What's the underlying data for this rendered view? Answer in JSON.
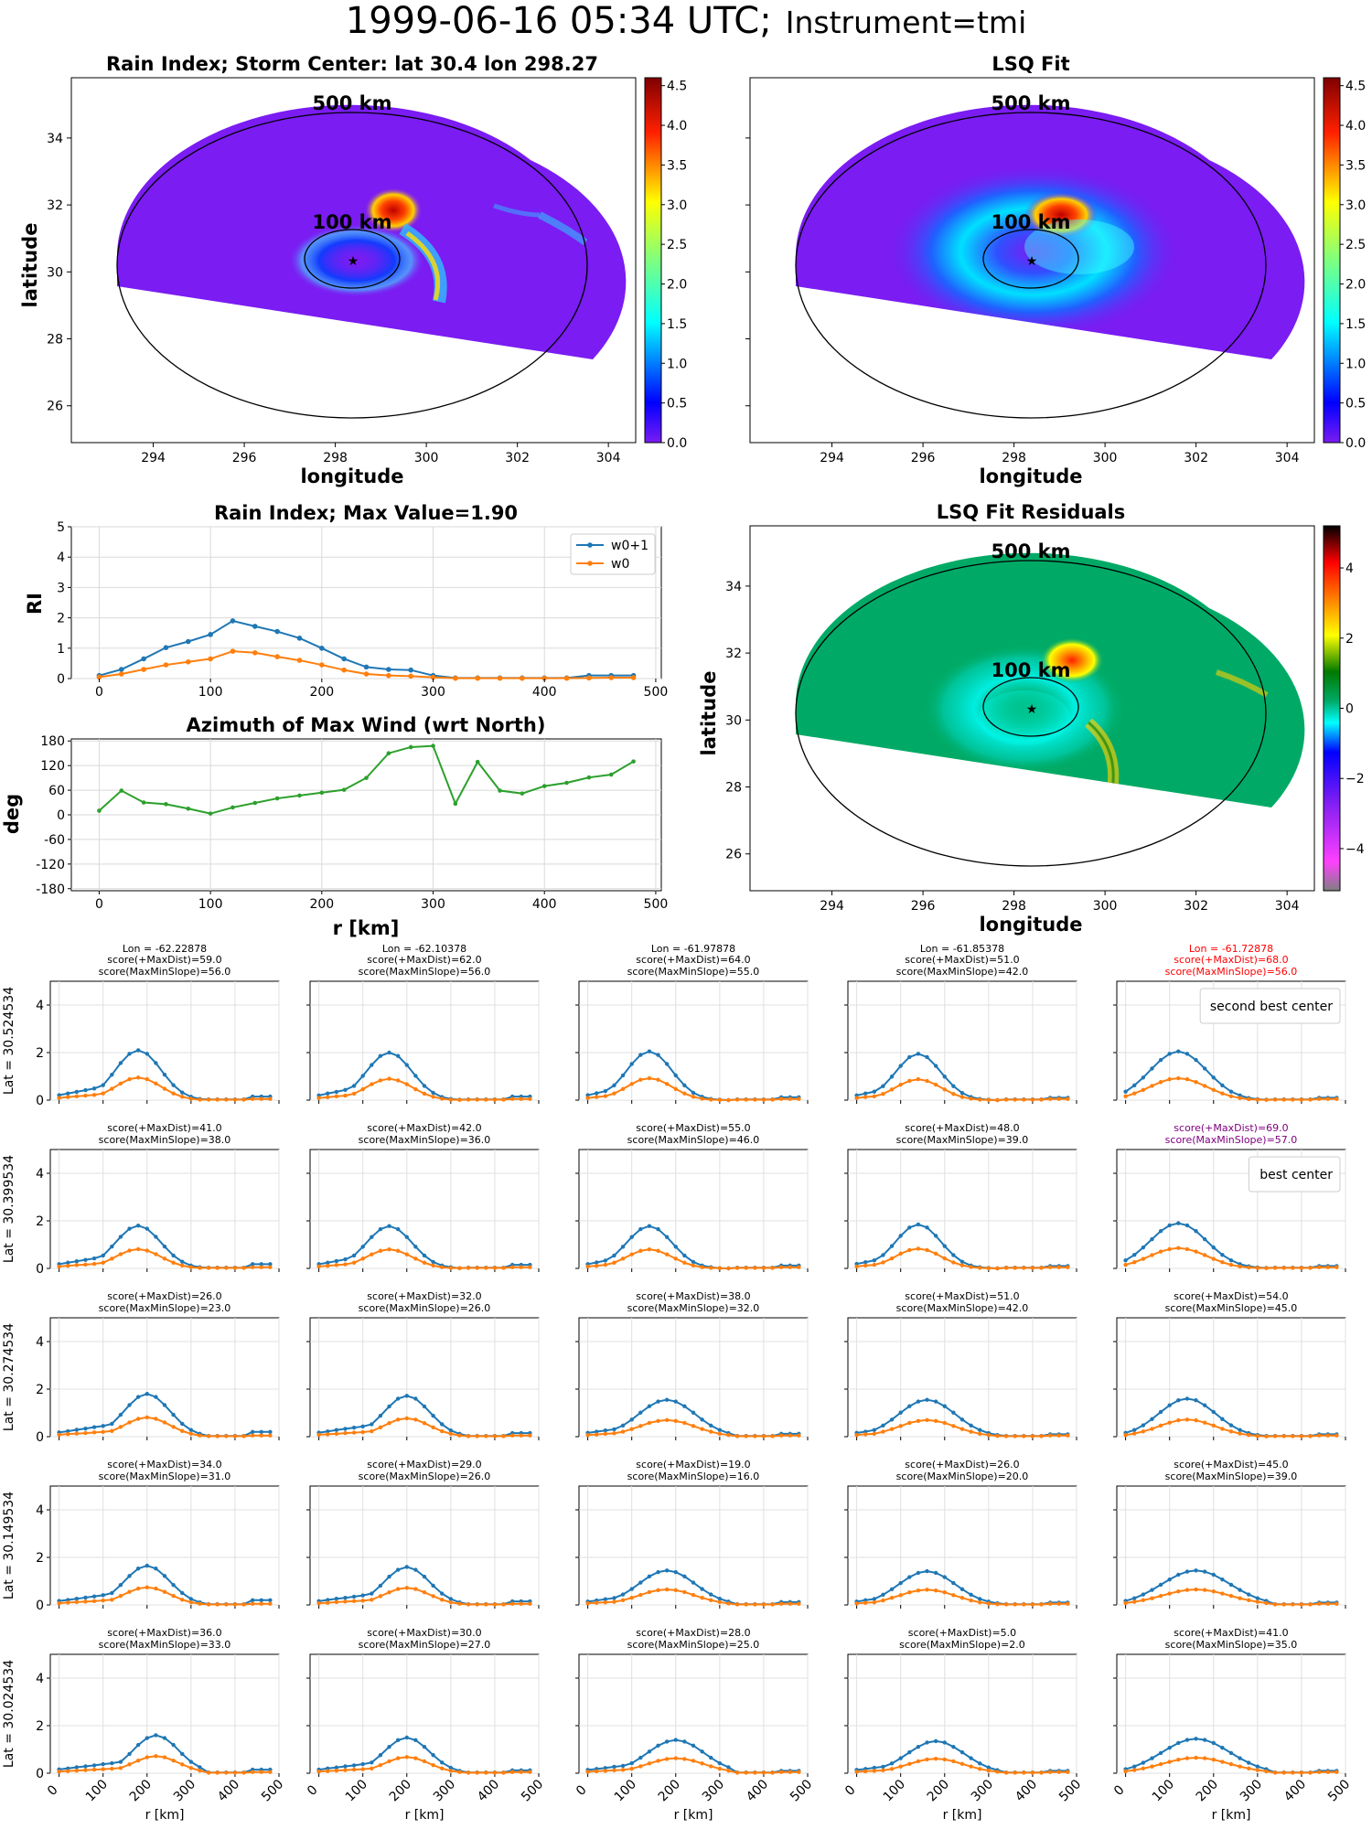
{
  "figure": {
    "suptitle_main": "1999-06-16 05:34 UTC;",
    "suptitle_instrument": "Instrument=tmi"
  },
  "maps": {
    "rain_index_title": "Rain Index; Storm Center: lat 30.4 lon 298.27",
    "lsq_fit_title": "LSQ Fit",
    "residuals_title": "LSQ Fit Residuals",
    "xlabel": "longitude",
    "ylabel": "latitude",
    "ring_outer_label": "500 km",
    "ring_inner_label": "100 km",
    "x_ticks": [
      "294",
      "296",
      "298",
      "300",
      "302",
      "304"
    ],
    "y_ticks": [
      "26",
      "28",
      "30",
      "32",
      "34"
    ],
    "colorbar_ticks": [
      "0.0",
      "0.5",
      "1.0",
      "1.5",
      "2.0",
      "2.5",
      "3.0",
      "3.5",
      "4.0",
      "4.5"
    ],
    "residual_colorbar_ticks": [
      "4",
      "2",
      "0",
      "−2",
      "−4"
    ],
    "colors": {
      "background_rain": "#7a1cf2",
      "residual_background": "#00aa66"
    }
  },
  "chart_data": [
    {
      "type": "line",
      "panel": "rain-index-profile",
      "title": "Rain Index; Max Value=1.90",
      "xlabel": "",
      "ylabel": "RI",
      "xlim": [
        -25,
        505
      ],
      "ylim": [
        0,
        5
      ],
      "x_ticks": [
        0,
        100,
        200,
        300,
        400,
        500
      ],
      "y_ticks": [
        0,
        1,
        2,
        3,
        4,
        5
      ],
      "legend": "top-right",
      "x": [
        0,
        20,
        40,
        60,
        80,
        100,
        120,
        140,
        160,
        180,
        200,
        220,
        240,
        260,
        280,
        300,
        320,
        340,
        360,
        380,
        400,
        420,
        440,
        460,
        480
      ],
      "series": [
        {
          "name": "w0+1",
          "color": "#1f77b4",
          "marker": "star",
          "values": [
            0.1,
            0.3,
            0.65,
            1.02,
            1.22,
            1.45,
            1.9,
            1.72,
            1.55,
            1.33,
            1.0,
            0.65,
            0.38,
            0.3,
            0.28,
            0.1,
            0.02,
            0.02,
            0.02,
            0.02,
            0.02,
            0.02,
            0.1,
            0.1,
            0.1
          ]
        },
        {
          "name": "w0",
          "color": "#ff7f0e",
          "marker": "star",
          "values": [
            0.05,
            0.15,
            0.3,
            0.45,
            0.55,
            0.65,
            0.9,
            0.85,
            0.72,
            0.6,
            0.45,
            0.28,
            0.15,
            0.1,
            0.08,
            0.04,
            0.01,
            0.01,
            0.01,
            0.01,
            0.01,
            0.01,
            0.02,
            0.03,
            0.03
          ]
        }
      ]
    },
    {
      "type": "line",
      "panel": "azimuth-max-wind",
      "title": "Azimuth of Max Wind (wrt North)",
      "xlabel": "r [km]",
      "ylabel": "deg",
      "xlim": [
        -25,
        505
      ],
      "ylim": [
        -185,
        185
      ],
      "x_ticks": [
        0,
        100,
        200,
        300,
        400,
        500
      ],
      "y_ticks": [
        -180,
        -120,
        -60,
        0,
        60,
        120,
        180
      ],
      "x": [
        0,
        20,
        40,
        60,
        80,
        100,
        120,
        140,
        160,
        180,
        200,
        220,
        240,
        260,
        280,
        300,
        320,
        340,
        360,
        380,
        400,
        420,
        440,
        460,
        480
      ],
      "series": [
        {
          "color": "#2ca02c",
          "marker": "dot",
          "values": [
            10,
            59,
            30,
            26,
            15,
            3,
            18,
            29,
            40,
            47,
            54,
            61,
            90,
            150,
            165,
            168,
            27,
            129,
            59,
            52,
            70,
            78,
            91,
            98,
            130
          ]
        }
      ]
    },
    {
      "type": "line",
      "panel": "score-grid",
      "xlabel": "r [km]",
      "x_ticks": [
        0,
        100,
        200,
        300,
        400,
        500
      ],
      "y_ticks": [
        0,
        2,
        4
      ],
      "xlim": [
        -20,
        500
      ],
      "ylim": [
        0,
        5
      ],
      "column_lon_labels": [
        "Lon = -62.22878",
        "Lon = -62.10378",
        "Lon = -61.97878",
        "Lon = -61.85378",
        "Lon = -61.72878"
      ],
      "row_lat_labels": [
        "Lat = 30.524534",
        "Lat = 30.399534",
        "Lat = 30.274534",
        "Lat = 30.149534",
        "Lat = 30.024534"
      ],
      "x": [
        0,
        20,
        40,
        60,
        80,
        100,
        120,
        140,
        160,
        180,
        200,
        220,
        240,
        260,
        280,
        300,
        320,
        340,
        360,
        380,
        400,
        420,
        440,
        460,
        480
      ],
      "cells": [
        [
          {
            "score1": "score(+MaxDist)=59.0",
            "score2": "score(MaxMinSlope)=56.0",
            "color": "#000000",
            "peak": 2.1,
            "peak_x": 180,
            "width": 4,
            "tail": 0.15
          },
          {
            "score1": "score(+MaxDist)=62.0",
            "score2": "score(MaxMinSlope)=56.0",
            "color": "#000000",
            "peak": 2.0,
            "peak_x": 160,
            "width": 4,
            "tail": 0.15
          },
          {
            "score1": "score(+MaxDist)=64.0",
            "score2": "score(MaxMinSlope)=55.0",
            "color": "#000000",
            "peak": 2.05,
            "peak_x": 140,
            "width": 4,
            "tail": 0.12
          },
          {
            "score1": "score(+MaxDist)=51.0",
            "score2": "score(MaxMinSlope)=42.0",
            "color": "#000000",
            "peak": 1.95,
            "peak_x": 140,
            "width": 4,
            "tail": 0.1
          },
          {
            "score1": "score(+MaxDist)=68.0",
            "score2": "score(MaxMinSlope)=56.0",
            "color": "#ff0000",
            "peak": 2.05,
            "peak_x": 120,
            "width": 5,
            "tail": 0.1,
            "legend": "second best center"
          }
        ],
        [
          {
            "score1": "score(+MaxDist)=41.0",
            "score2": "score(MaxMinSlope)=38.0",
            "color": "#000000",
            "peak": 1.8,
            "peak_x": 180,
            "width": 4,
            "tail": 0.18
          },
          {
            "score1": "score(+MaxDist)=42.0",
            "score2": "score(MaxMinSlope)=36.0",
            "color": "#000000",
            "peak": 1.78,
            "peak_x": 160,
            "width": 4,
            "tail": 0.15
          },
          {
            "score1": "score(+MaxDist)=55.0",
            "score2": "score(MaxMinSlope)=46.0",
            "color": "#000000",
            "peak": 1.78,
            "peak_x": 140,
            "width": 4,
            "tail": 0.12
          },
          {
            "score1": "score(+MaxDist)=48.0",
            "score2": "score(MaxMinSlope)=39.0",
            "color": "#000000",
            "peak": 1.85,
            "peak_x": 140,
            "width": 4,
            "tail": 0.1
          },
          {
            "score1": "score(+MaxDist)=69.0",
            "score2": "score(MaxMinSlope)=57.0",
            "color": "#800080",
            "peak": 1.9,
            "peak_x": 120,
            "width": 5,
            "tail": 0.1,
            "legend": "best center"
          }
        ],
        [
          {
            "score1": "score(+MaxDist)=26.0",
            "score2": "score(MaxMinSlope)=23.0",
            "color": "#000000",
            "peak": 1.8,
            "peak_x": 200,
            "width": 4,
            "tail": 0.2
          },
          {
            "score1": "score(+MaxDist)=32.0",
            "score2": "score(MaxMinSlope)=26.0",
            "color": "#000000",
            "peak": 1.72,
            "peak_x": 200,
            "width": 4,
            "tail": 0.15
          },
          {
            "score1": "score(+MaxDist)=38.0",
            "score2": "score(MaxMinSlope)=32.0",
            "color": "#000000",
            "peak": 1.55,
            "peak_x": 180,
            "width": 5,
            "tail": 0.12
          },
          {
            "score1": "score(+MaxDist)=51.0",
            "score2": "score(MaxMinSlope)=42.0",
            "color": "#000000",
            "peak": 1.55,
            "peak_x": 160,
            "width": 5,
            "tail": 0.1
          },
          {
            "score1": "score(+MaxDist)=54.0",
            "score2": "score(MaxMinSlope)=45.0",
            "color": "#000000",
            "peak": 1.6,
            "peak_x": 140,
            "width": 5,
            "tail": 0.1
          }
        ],
        [
          {
            "score1": "score(+MaxDist)=34.0",
            "score2": "score(MaxMinSlope)=31.0",
            "color": "#000000",
            "peak": 1.65,
            "peak_x": 200,
            "width": 4,
            "tail": 0.2
          },
          {
            "score1": "score(+MaxDist)=29.0",
            "score2": "score(MaxMinSlope)=26.0",
            "color": "#000000",
            "peak": 1.6,
            "peak_x": 200,
            "width": 4,
            "tail": 0.15
          },
          {
            "score1": "score(+MaxDist)=19.0",
            "score2": "score(MaxMinSlope)=16.0",
            "color": "#000000",
            "peak": 1.45,
            "peak_x": 180,
            "width": 5,
            "tail": 0.12
          },
          {
            "score1": "score(+MaxDist)=26.0",
            "score2": "score(MaxMinSlope)=20.0",
            "color": "#000000",
            "peak": 1.42,
            "peak_x": 160,
            "width": 5,
            "tail": 0.1
          },
          {
            "score1": "score(+MaxDist)=45.0",
            "score2": "score(MaxMinSlope)=39.0",
            "color": "#000000",
            "peak": 1.45,
            "peak_x": 160,
            "width": 6,
            "tail": 0.1
          }
        ],
        [
          {
            "score1": "score(+MaxDist)=36.0",
            "score2": "score(MaxMinSlope)=33.0",
            "color": "#000000",
            "peak": 1.6,
            "peak_x": 220,
            "width": 4,
            "tail": 0.15
          },
          {
            "score1": "score(+MaxDist)=30.0",
            "score2": "score(MaxMinSlope)=27.0",
            "color": "#000000",
            "peak": 1.5,
            "peak_x": 200,
            "width": 4,
            "tail": 0.12
          },
          {
            "score1": "score(+MaxDist)=28.0",
            "score2": "score(MaxMinSlope)=25.0",
            "color": "#000000",
            "peak": 1.4,
            "peak_x": 200,
            "width": 5,
            "tail": 0.1
          },
          {
            "score1": "score(+MaxDist)=5.0",
            "score2": "score(MaxMinSlope)=2.0",
            "color": "#000000",
            "peak": 1.35,
            "peak_x": 180,
            "width": 5,
            "tail": 0.1
          },
          {
            "score1": "score(+MaxDist)=41.0",
            "score2": "score(MaxMinSlope)=35.0",
            "color": "#000000",
            "peak": 1.45,
            "peak_x": 160,
            "width": 6,
            "tail": 0.1
          }
        ]
      ],
      "series_colors": [
        "#1f77b4",
        "#ff7f0e"
      ]
    }
  ]
}
